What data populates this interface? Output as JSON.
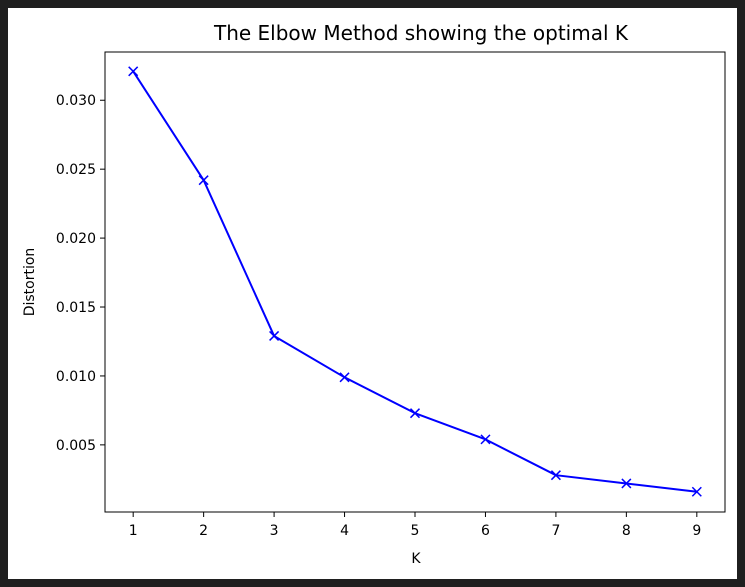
{
  "chart_data": {
    "type": "line",
    "title": "The Elbow Method showing the optimal K",
    "xlabel": "K",
    "ylabel": "Distortion",
    "x": [
      1,
      2,
      3,
      4,
      5,
      6,
      7,
      8,
      9
    ],
    "series": [
      {
        "values": [
          0.0321,
          0.0242,
          0.0129,
          0.0099,
          0.0073,
          0.0054,
          0.0028,
          0.0022,
          0.0016
        ],
        "color": "#0000ff",
        "marker": "x"
      }
    ],
    "xticks": [
      "1",
      "2",
      "3",
      "4",
      "5",
      "6",
      "7",
      "8",
      "9"
    ],
    "yticks": [
      "0.005",
      "0.010",
      "0.015",
      "0.020",
      "0.025",
      "0.030"
    ],
    "xlim": [
      0.6,
      9.4
    ],
    "ylim": [
      0.00013,
      0.0335
    ],
    "grid": false,
    "legend": "none"
  }
}
